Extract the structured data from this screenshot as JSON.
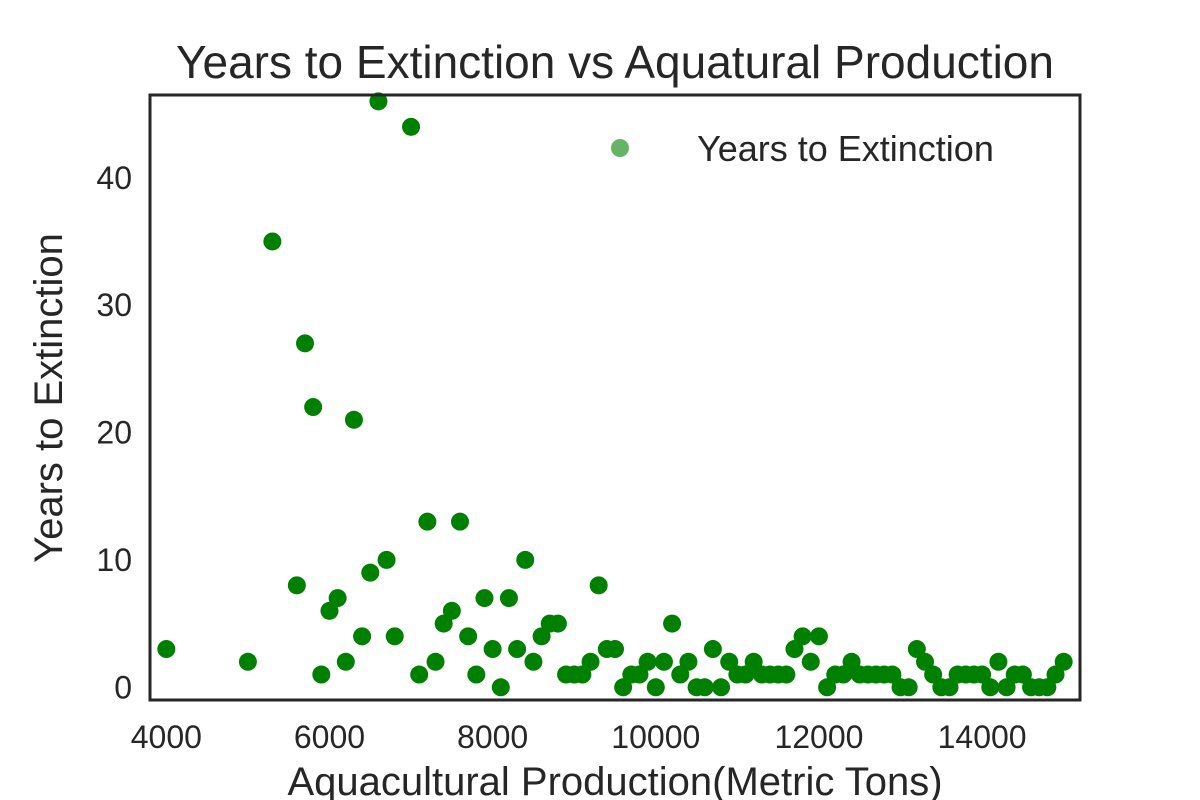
{
  "chart_data": {
    "type": "scatter",
    "title": "Years to Extinction vs Aquatural Production",
    "xlabel": "Aquacultural Production(Metric Tons)",
    "ylabel": "Years to Extinction",
    "xlim": [
      3800,
      15200
    ],
    "ylim": [
      -1,
      46.5
    ],
    "xticks": [
      4000,
      6000,
      8000,
      10000,
      12000,
      14000
    ],
    "yticks": [
      0,
      10,
      20,
      30,
      40
    ],
    "grid": false,
    "legend_position": "top-right",
    "series": [
      {
        "name": "Years to Extinction",
        "color": "#008000",
        "points": [
          [
            4000,
            3
          ],
          [
            5000,
            2
          ],
          [
            5300,
            35
          ],
          [
            5600,
            8
          ],
          [
            5700,
            27
          ],
          [
            5800,
            22
          ],
          [
            5900,
            1
          ],
          [
            6000,
            6
          ],
          [
            6100,
            7
          ],
          [
            6200,
            2
          ],
          [
            6300,
            21
          ],
          [
            6400,
            4
          ],
          [
            6500,
            9
          ],
          [
            6600,
            46
          ],
          [
            6700,
            10
          ],
          [
            6800,
            4
          ],
          [
            7000,
            44
          ],
          [
            7100,
            1
          ],
          [
            7200,
            13
          ],
          [
            7300,
            2
          ],
          [
            7400,
            5
          ],
          [
            7500,
            6
          ],
          [
            7600,
            13
          ],
          [
            7700,
            4
          ],
          [
            7800,
            1
          ],
          [
            7900,
            7
          ],
          [
            8000,
            3
          ],
          [
            8100,
            0
          ],
          [
            8200,
            7
          ],
          [
            8300,
            3
          ],
          [
            8400,
            10
          ],
          [
            8500,
            2
          ],
          [
            8600,
            4
          ],
          [
            8700,
            5
          ],
          [
            8800,
            5
          ],
          [
            8900,
            1
          ],
          [
            9000,
            1
          ],
          [
            9100,
            1
          ],
          [
            9200,
            2
          ],
          [
            9300,
            8
          ],
          [
            9400,
            3
          ],
          [
            9500,
            3
          ],
          [
            9600,
            0
          ],
          [
            9700,
            1
          ],
          [
            9800,
            1
          ],
          [
            9900,
            2
          ],
          [
            10000,
            0
          ],
          [
            10100,
            2
          ],
          [
            10200,
            5
          ],
          [
            10300,
            1
          ],
          [
            10400,
            2
          ],
          [
            10500,
            0
          ],
          [
            10600,
            0
          ],
          [
            10700,
            3
          ],
          [
            10800,
            0
          ],
          [
            10900,
            2
          ],
          [
            11000,
            1
          ],
          [
            11100,
            1
          ],
          [
            11200,
            2
          ],
          [
            11300,
            1
          ],
          [
            11400,
            1
          ],
          [
            11500,
            1
          ],
          [
            11600,
            1
          ],
          [
            11700,
            3
          ],
          [
            11800,
            4
          ],
          [
            11900,
            2
          ],
          [
            12000,
            4
          ],
          [
            12100,
            0
          ],
          [
            12200,
            1
          ],
          [
            12300,
            1
          ],
          [
            12400,
            2
          ],
          [
            12500,
            1
          ],
          [
            12600,
            1
          ],
          [
            12700,
            1
          ],
          [
            12800,
            1
          ],
          [
            12900,
            1
          ],
          [
            13000,
            0
          ],
          [
            13100,
            0
          ],
          [
            13200,
            3
          ],
          [
            13300,
            2
          ],
          [
            13400,
            1
          ],
          [
            13500,
            0
          ],
          [
            13600,
            0
          ],
          [
            13700,
            1
          ],
          [
            13800,
            1
          ],
          [
            13900,
            1
          ],
          [
            14000,
            1
          ],
          [
            14100,
            0
          ],
          [
            14200,
            2
          ],
          [
            14300,
            0
          ],
          [
            14400,
            1
          ],
          [
            14500,
            1
          ],
          [
            14600,
            0
          ],
          [
            14700,
            0
          ],
          [
            14800,
            0
          ],
          [
            14900,
            1
          ],
          [
            15000,
            2
          ]
        ]
      }
    ]
  }
}
